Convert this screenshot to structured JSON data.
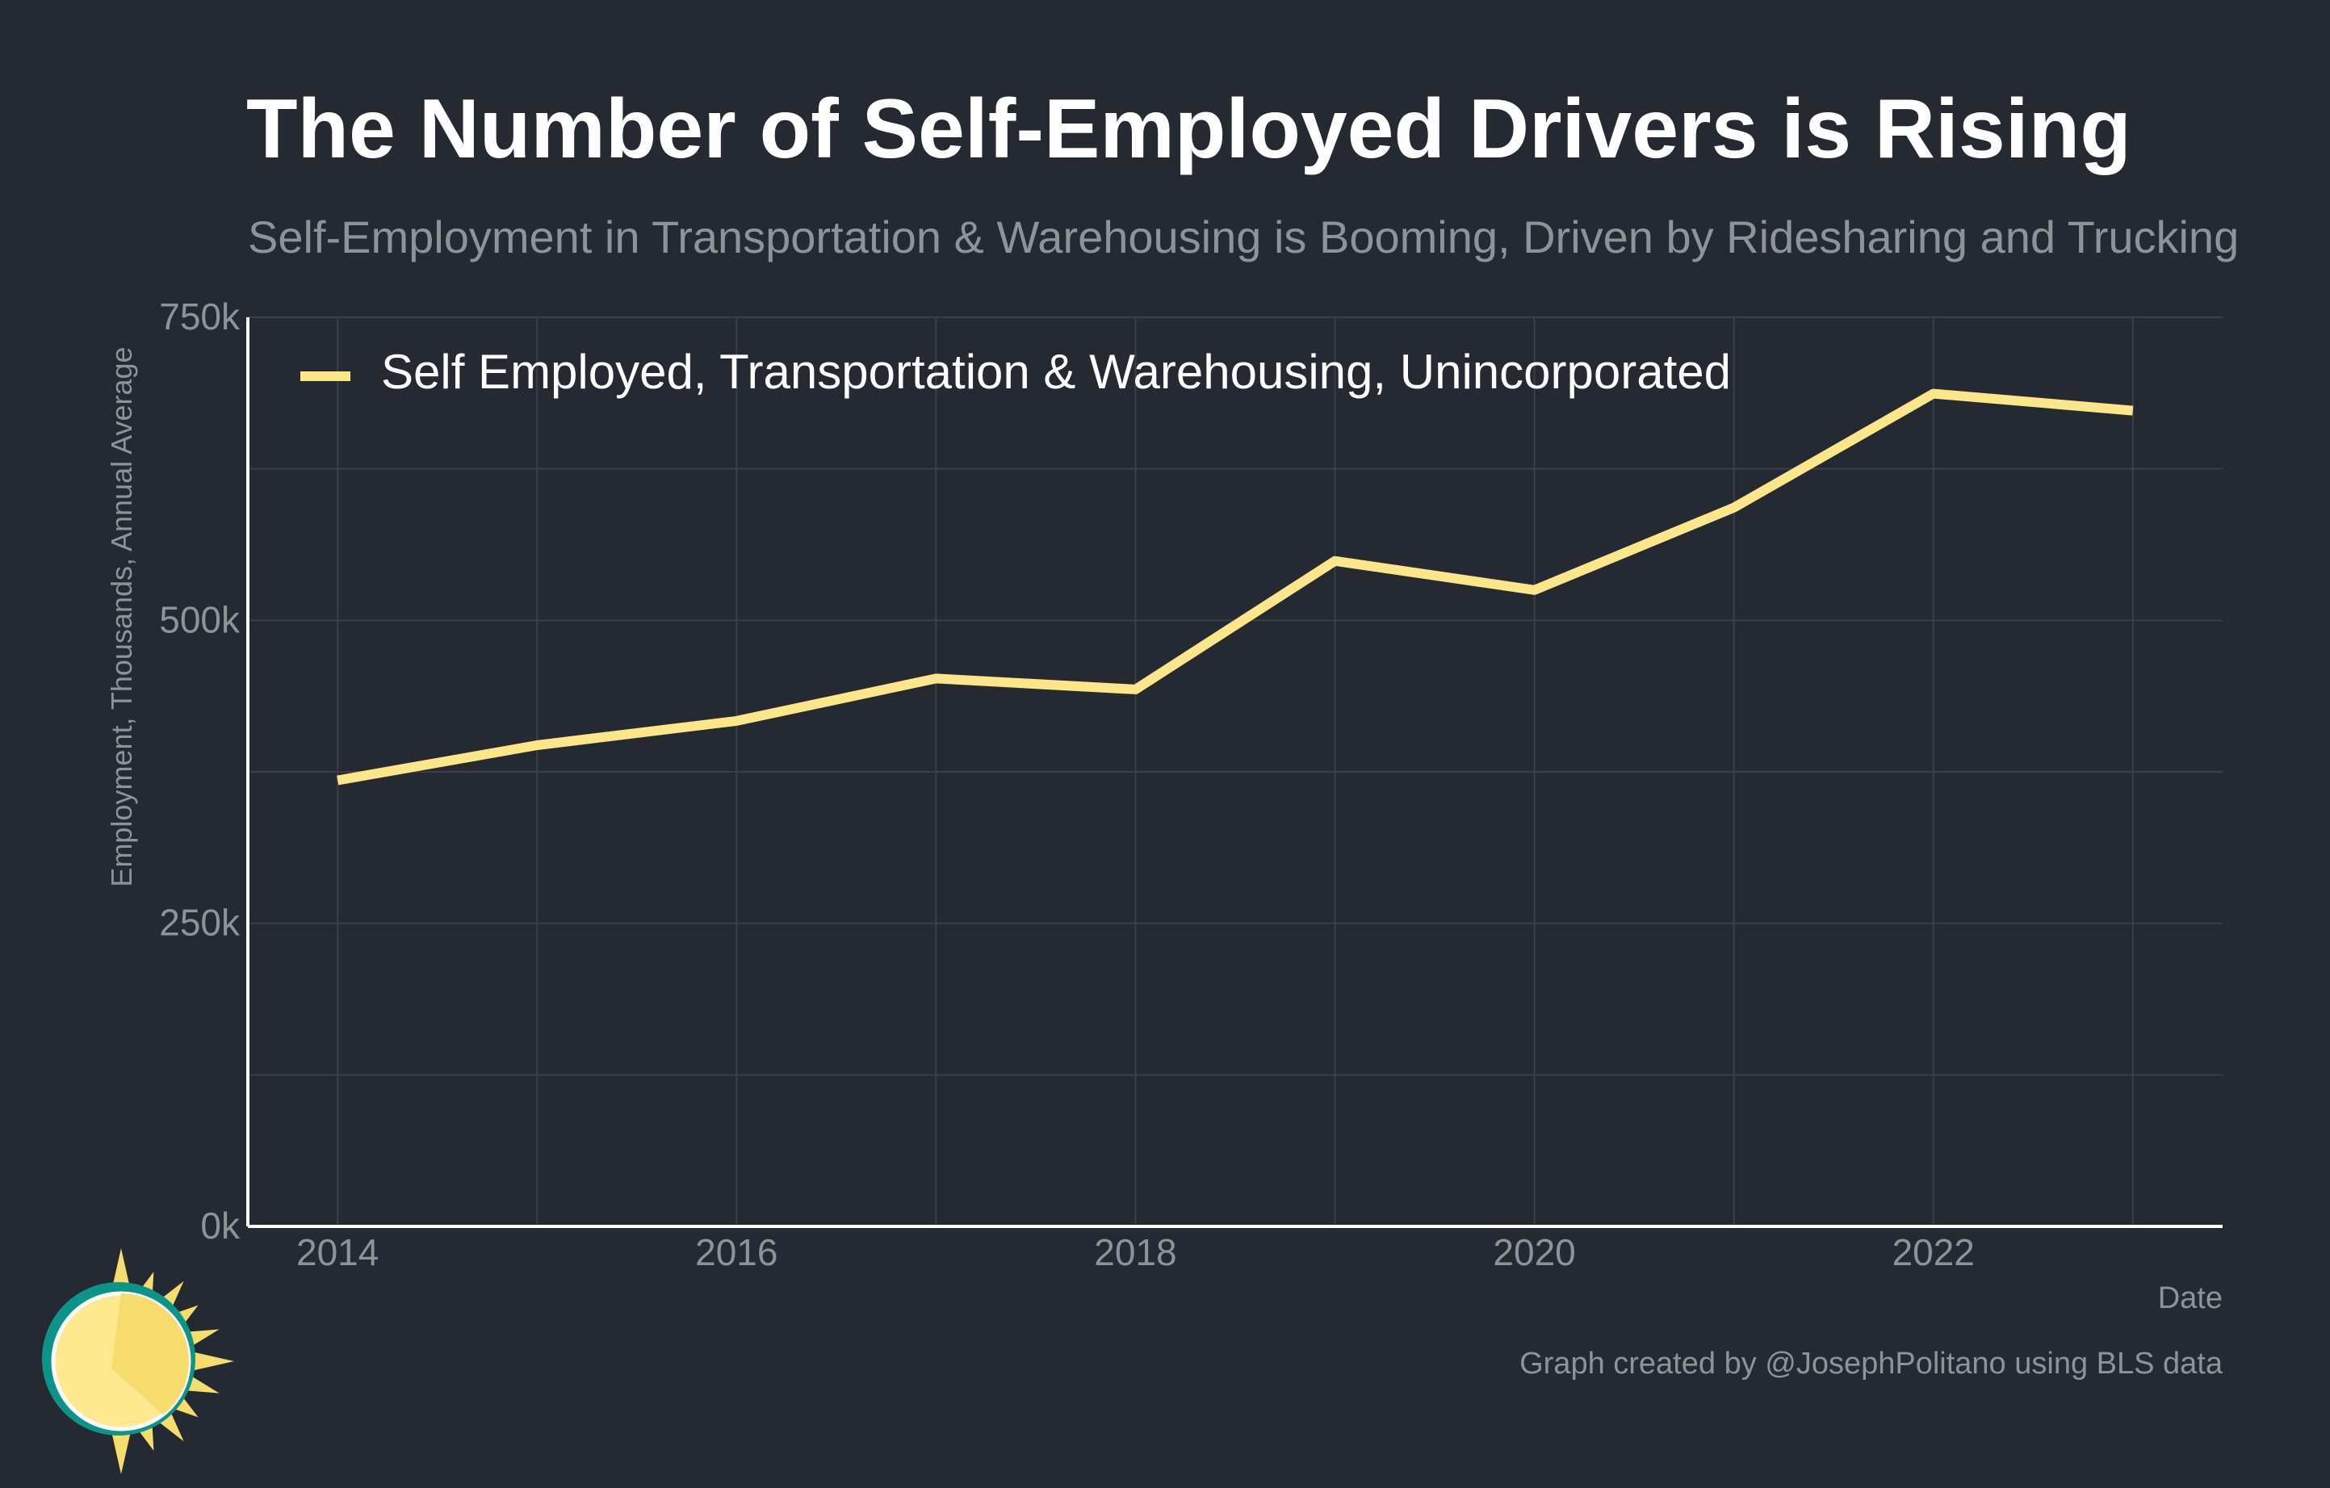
{
  "chart_data": {
    "type": "line",
    "title": "The Number of Self-Employed Drivers is Rising",
    "subtitle": "Self-Employment in Transportation & Warehousing is Booming, Driven by Ridesharing and Trucking",
    "xlabel": "Date",
    "ylabel": "Employment, Thousands, Annual Average",
    "x": [
      2014,
      2015,
      2016,
      2017,
      2018,
      2019,
      2020,
      2021,
      2022,
      2023
    ],
    "xlim": [
      2013.55,
      2023.45
    ],
    "xticks": [
      2014,
      2016,
      2018,
      2020,
      2022
    ],
    "xtick_labels": [
      "2014",
      "2016",
      "2018",
      "2020",
      "2022"
    ],
    "ylim": [
      0,
      750
    ],
    "yticks": [
      0,
      250,
      500,
      750
    ],
    "ytick_labels": [
      "0k",
      "250k",
      "500k",
      "750k"
    ],
    "grid": true,
    "legend_position": "top-left",
    "series": [
      {
        "name": "Self Employed, Transportation & Warehousing, Unincorporated",
        "color": "#fde68a",
        "values": [
          368,
          397,
          417,
          452,
          443,
          549,
          525,
          593,
          687,
          673
        ]
      }
    ],
    "caption": "Graph created by @JosephPolitano using BLS data"
  },
  "colors": {
    "background": "#252932",
    "grid": "#3a3f49",
    "axis": "#ffffff",
    "muted_text": "#8e9299",
    "logo_teal": "#0d9488",
    "logo_yellow": "#f5dc6c",
    "logo_light_yellow": "#ffe88f"
  },
  "logo": {
    "icon": "sun-logo-icon"
  }
}
